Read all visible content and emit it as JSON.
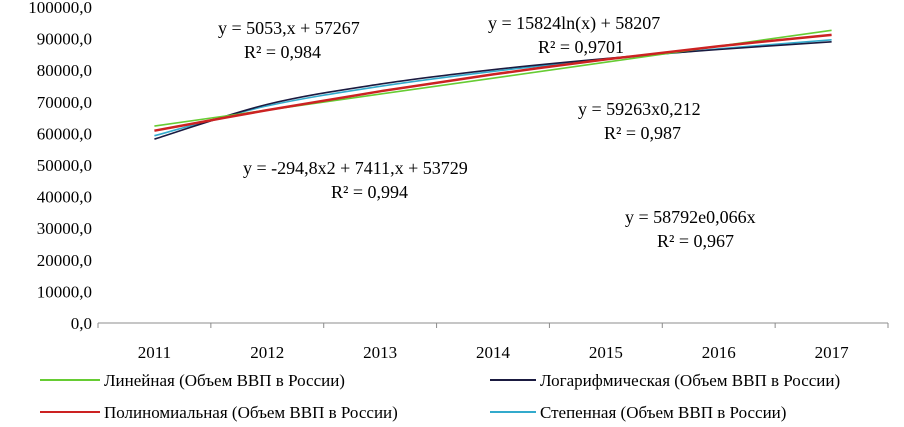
{
  "chart_data": {
    "type": "line",
    "title": "",
    "xlabel": "",
    "ylabel": "",
    "ylim": [
      0,
      100000
    ],
    "yticks": [
      "0,0",
      "10000,0",
      "20000,0",
      "30000,0",
      "40000,0",
      "50000,0",
      "60000,0",
      "70000,0",
      "80000,0",
      "90000,0",
      "100000,0"
    ],
    "x": [
      "2011",
      "2012",
      "2013",
      "2014",
      "2015",
      "2016",
      "2017"
    ],
    "grid": false,
    "legend_position": "bottom",
    "series": [
      {
        "name": "Линейная (Объем ВВП в России)",
        "color": "#66cc33",
        "values": [
          62320,
          67373,
          72426,
          77479,
          82532,
          87585,
          92638
        ]
      },
      {
        "name": "Логарифмическая (Объем ВВП в России)",
        "color": "#1a1a40",
        "values": [
          58207,
          69175,
          75591,
          80143,
          83675,
          86560,
          88999
        ]
      },
      {
        "name": "Полиномиальная (Объем ВВП в России)",
        "color": "#cc2222",
        "values": [
          60845,
          67372,
          73309,
          78657,
          83415,
          87583,
          91162
        ]
      },
      {
        "name": "Степенная (Объем ВВП в России)",
        "color": "#33aacc",
        "values": [
          59263,
          68693,
          74897,
          79627,
          83488,
          86763,
          89616
        ]
      }
    ],
    "annotations": [
      {
        "line1": "y = 5053,x + 57267",
        "line2": "R² = 0,984"
      },
      {
        "line1": "y = 15824ln(x) + 58207",
        "line2": "R² = 0,9701"
      },
      {
        "line1": "y = 59263x0,212",
        "line2": "R² = 0,987"
      },
      {
        "line1": "y = -294,8x2 + 7411,x + 53729",
        "line2": "R² = 0,994"
      },
      {
        "line1": "y = 58792e0,066x",
        "line2": "R² = 0,967"
      }
    ]
  }
}
